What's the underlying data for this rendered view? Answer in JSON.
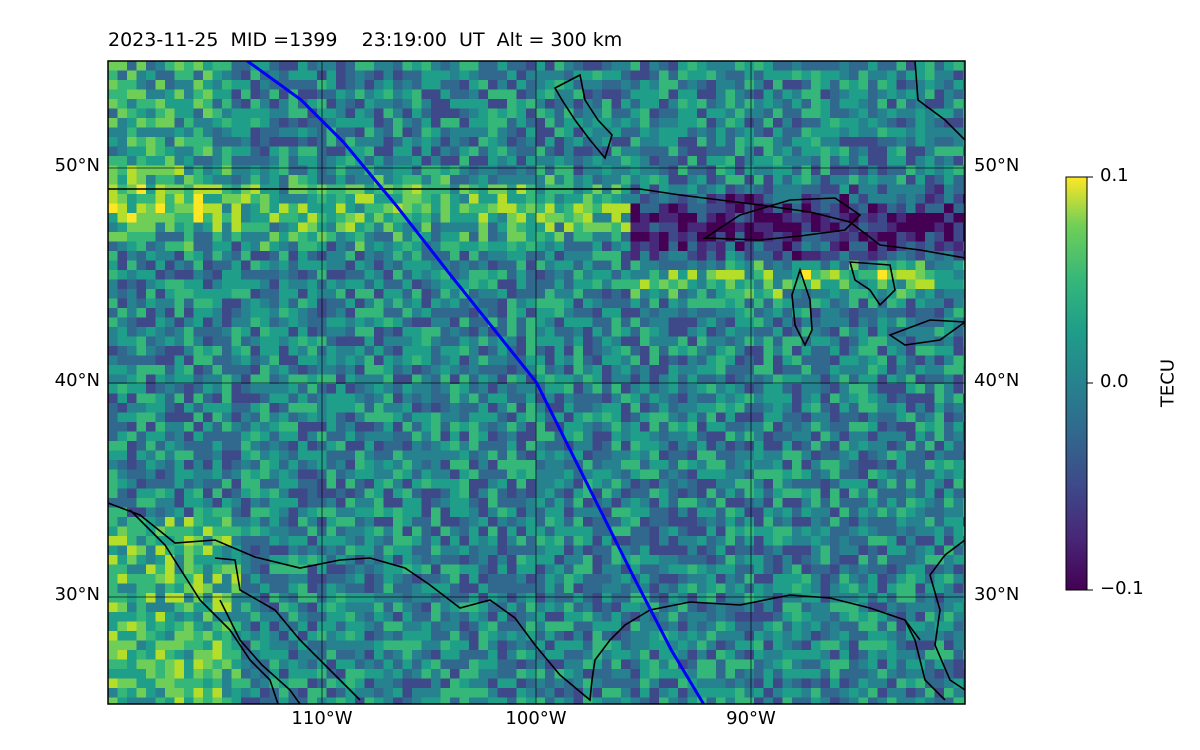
{
  "title": {
    "date": "2023-11-25",
    "mid": "MID =1399",
    "time": "23:19:00  UT",
    "alt": "Alt = 300 km"
  },
  "map": {
    "lon_range": [
      -120,
      -80
    ],
    "lat_range": [
      25,
      55
    ],
    "lat_ticks": [
      "50°N",
      "40°N",
      "30°N"
    ],
    "lon_ticks": [
      "110°W",
      "100°W",
      "90°W"
    ],
    "colormap": "viridis",
    "track_color": "#0000ff",
    "track_path": [
      [
        -113.5,
        55
      ],
      [
        -111,
        53.2
      ],
      [
        -109,
        51.2
      ],
      [
        -106.5,
        48.2
      ],
      [
        -104,
        45
      ],
      [
        -102,
        42.5
      ],
      [
        -100,
        40
      ],
      [
        -98.5,
        37
      ],
      [
        -97,
        34
      ],
      [
        -95.5,
        31
      ],
      [
        -93.7,
        27.5
      ],
      [
        -92.2,
        25
      ]
    ]
  },
  "colorbar": {
    "title": "TECU",
    "max_label": "0.1",
    "mid_label": "0.0",
    "min_label": "−0.1",
    "range": [
      -0.1,
      0.1
    ]
  }
}
